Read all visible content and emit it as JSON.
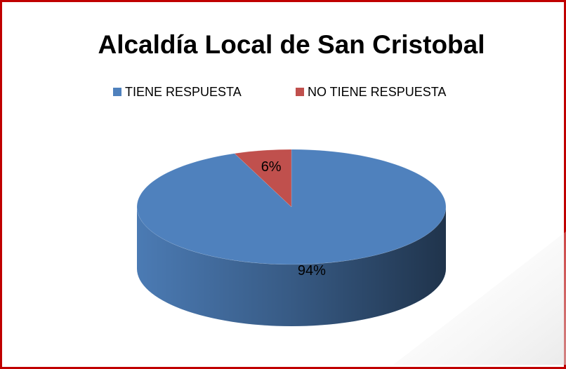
{
  "chart_data": {
    "type": "pie3d",
    "title": "Alcaldía Local de San Cristobal",
    "categories": [
      "TIENE RESPUESTA",
      "NO TIENE RESPUESTA"
    ],
    "values": [
      94,
      6
    ],
    "value_labels": [
      "94%",
      "6%"
    ],
    "colors": [
      "#4f81bd",
      "#c0504d"
    ],
    "legend": "top"
  }
}
